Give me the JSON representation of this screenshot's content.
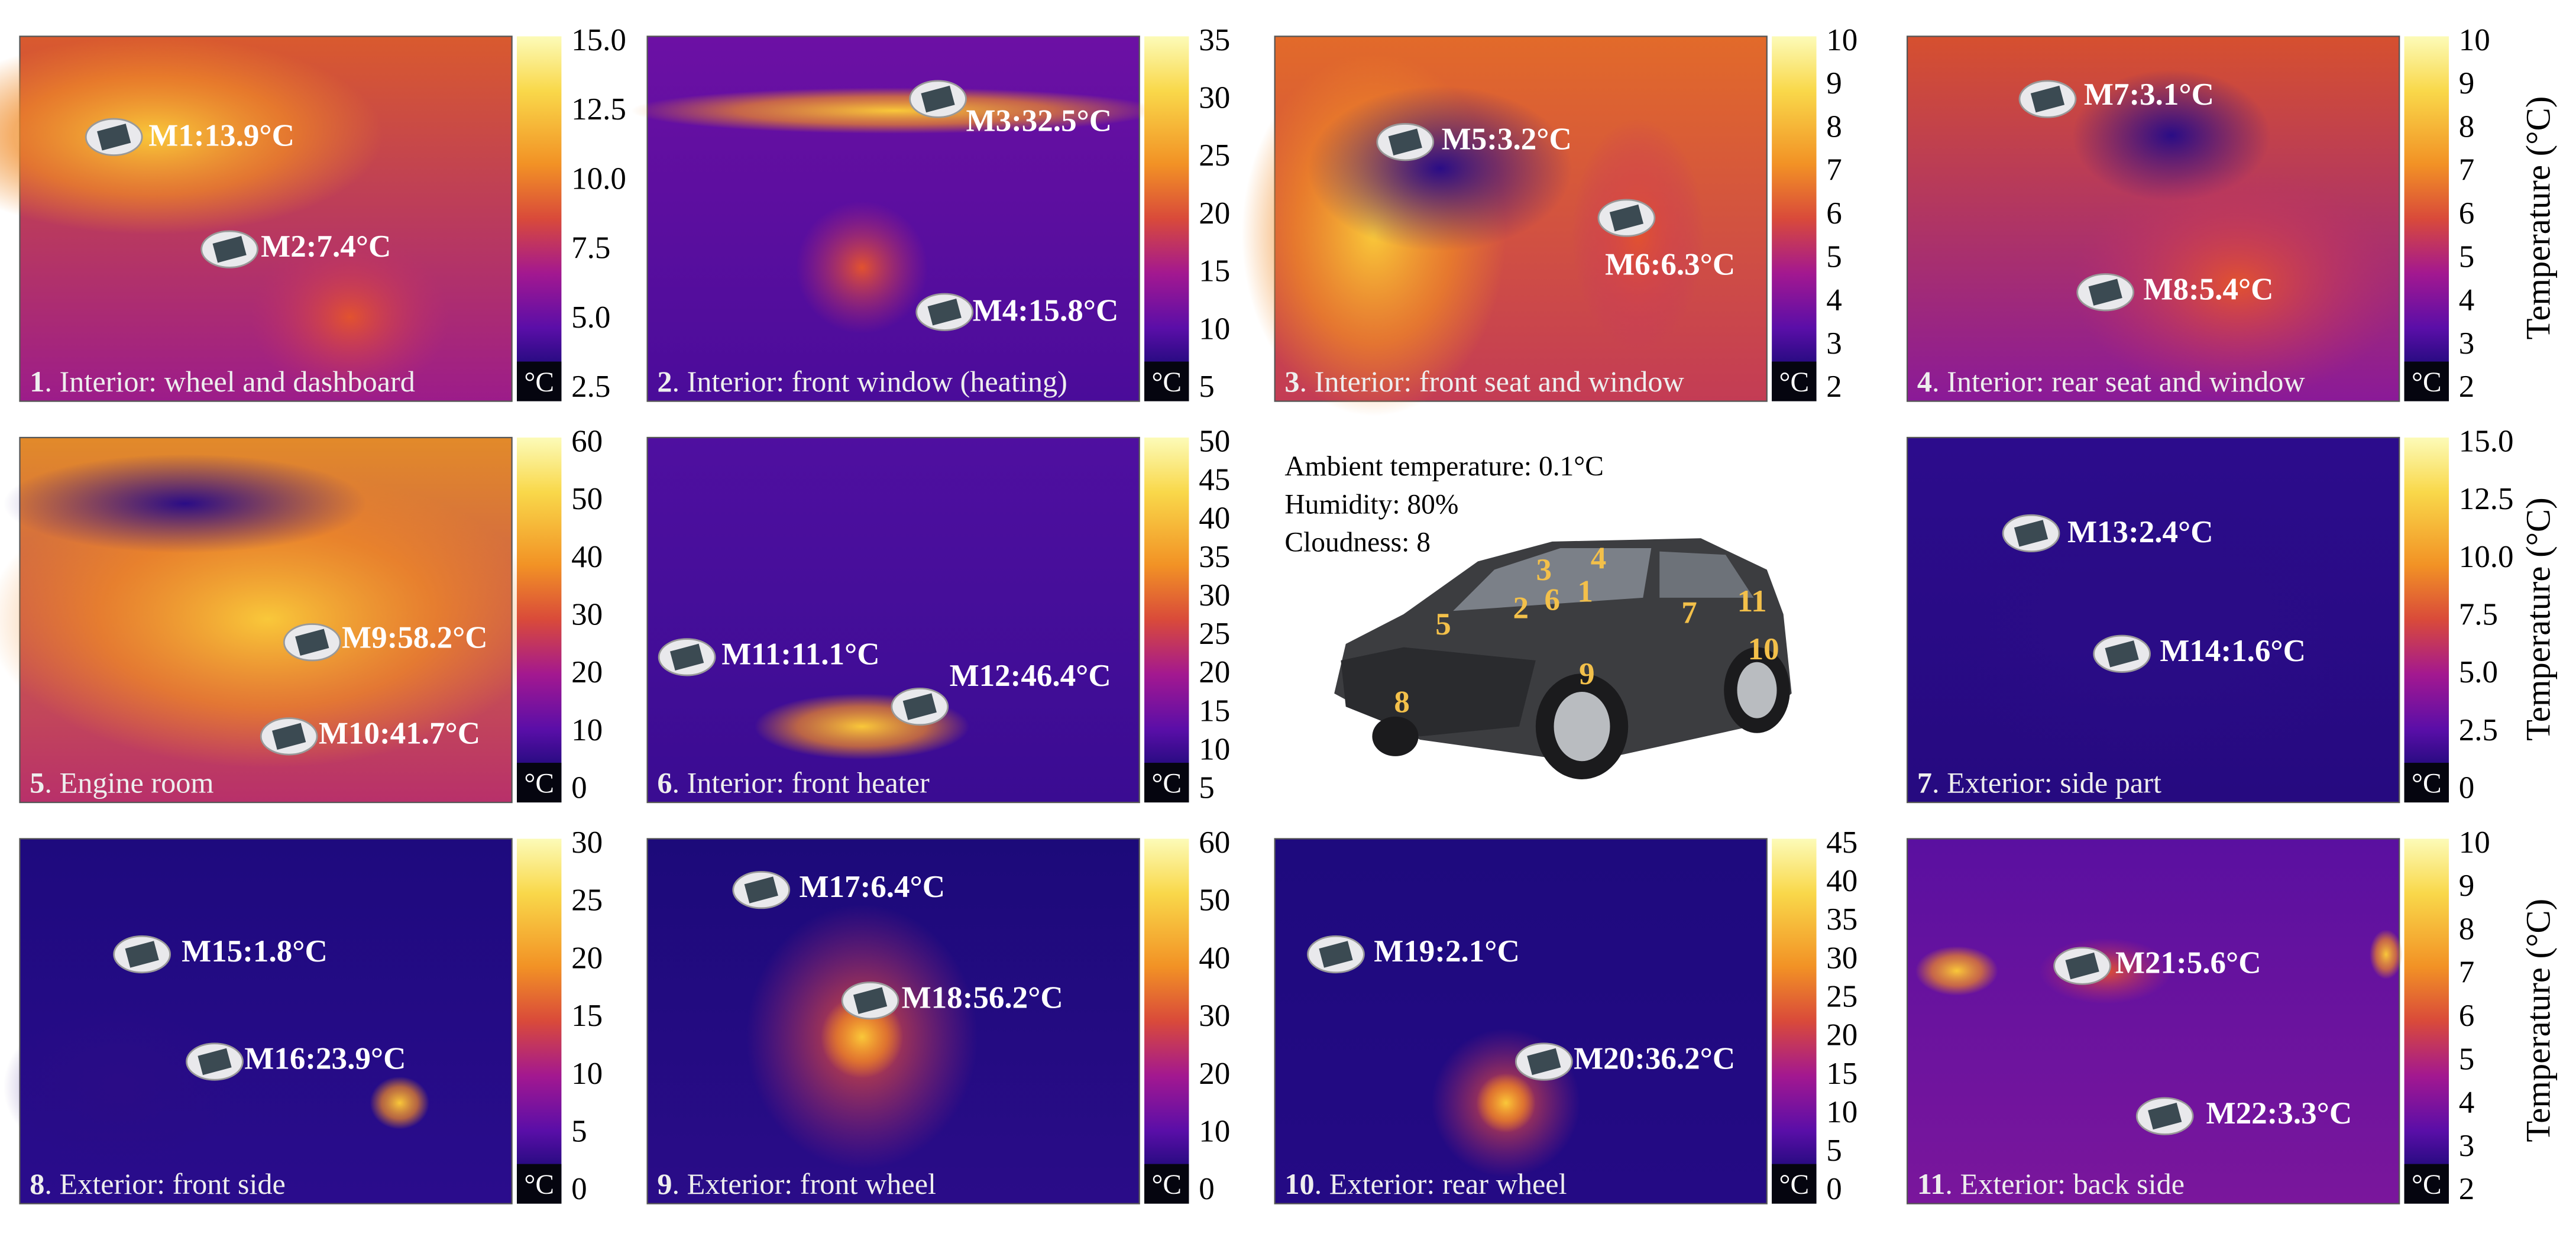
{
  "colorbar_label": "Temperature (°C)",
  "ambient": {
    "temperature": "Ambient temperature: 0.1°C",
    "humidity": "Humidity: 80%",
    "cloudness": "Cloudness: 8"
  },
  "car_labels": [
    "1",
    "2",
    "3",
    "4",
    "5",
    "6",
    "7",
    "8",
    "9",
    "10",
    "11"
  ],
  "panels": [
    {
      "number": "1",
      "caption": ". Interior: wheel and dashboard",
      "unit": "°C",
      "ticks": [
        "15.0",
        "12.5",
        "10.0",
        "7.5",
        "5.0",
        "2.5"
      ],
      "markers": [
        "M1:13.9°C",
        "M2:7.4°C"
      ]
    },
    {
      "number": "2",
      "caption": ". Interior: front window (heating)",
      "unit": "°C",
      "ticks": [
        "35",
        "30",
        "25",
        "20",
        "15",
        "10",
        "5"
      ],
      "markers": [
        "M3:32.5°C",
        "M4:15.8°C"
      ]
    },
    {
      "number": "3",
      "caption": ". Interior: front seat and window",
      "unit": "°C",
      "ticks": [
        "10",
        "9",
        "8",
        "7",
        "6",
        "5",
        "4",
        "3",
        "2"
      ],
      "markers": [
        "M5:3.2°C",
        "M6:6.3°C"
      ]
    },
    {
      "number": "4",
      "caption": ". Interior: rear seat and window",
      "unit": "°C",
      "ticks": [
        "10",
        "9",
        "8",
        "7",
        "6",
        "5",
        "4",
        "3",
        "2"
      ],
      "markers": [
        "M7:3.1°C",
        "M8:5.4°C"
      ]
    },
    {
      "number": "5",
      "caption": ". Engine room",
      "unit": "°C",
      "ticks": [
        "60",
        "50",
        "40",
        "30",
        "20",
        "10",
        "0"
      ],
      "markers": [
        "M9:58.2°C",
        "M10:41.7°C"
      ]
    },
    {
      "number": "6",
      "caption": ". Interior: front heater",
      "unit": "°C",
      "ticks": [
        "50",
        "45",
        "40",
        "35",
        "30",
        "25",
        "20",
        "15",
        "10",
        "5"
      ],
      "markers": [
        "M11:11.1°C",
        "M12:46.4°C"
      ]
    },
    {
      "number": "7",
      "caption": ". Exterior: side part",
      "unit": "°C",
      "ticks": [
        "15.0",
        "12.5",
        "10.0",
        "7.5",
        "5.0",
        "2.5",
        "0"
      ],
      "markers": [
        "M13:2.4°C",
        "M14:1.6°C"
      ]
    },
    {
      "number": "8",
      "caption": ". Exterior: front side",
      "unit": "°C",
      "ticks": [
        "30",
        "25",
        "20",
        "15",
        "10",
        "5",
        "0"
      ],
      "markers": [
        "M15:1.8°C",
        "M16:23.9°C"
      ]
    },
    {
      "number": "9",
      "caption": ". Exterior: front wheel",
      "unit": "°C",
      "ticks": [
        "60",
        "50",
        "40",
        "30",
        "20",
        "10",
        "0"
      ],
      "markers": [
        "M17:6.4°C",
        "M18:56.2°C"
      ]
    },
    {
      "number": "10",
      "caption": ". Exterior: rear wheel",
      "unit": "°C",
      "ticks": [
        "45",
        "40",
        "35",
        "30",
        "25",
        "20",
        "15",
        "10",
        "5",
        "0"
      ],
      "markers": [
        "M19:2.1°C",
        "M20:36.2°C"
      ]
    },
    {
      "number": "11",
      "caption": ". Exterior: back side",
      "unit": "°C",
      "ticks": [
        "10",
        "9",
        "8",
        "7",
        "6",
        "5",
        "4",
        "3",
        "2"
      ],
      "markers": [
        "M21:5.6°C",
        "M22:3.3°C"
      ]
    }
  ]
}
